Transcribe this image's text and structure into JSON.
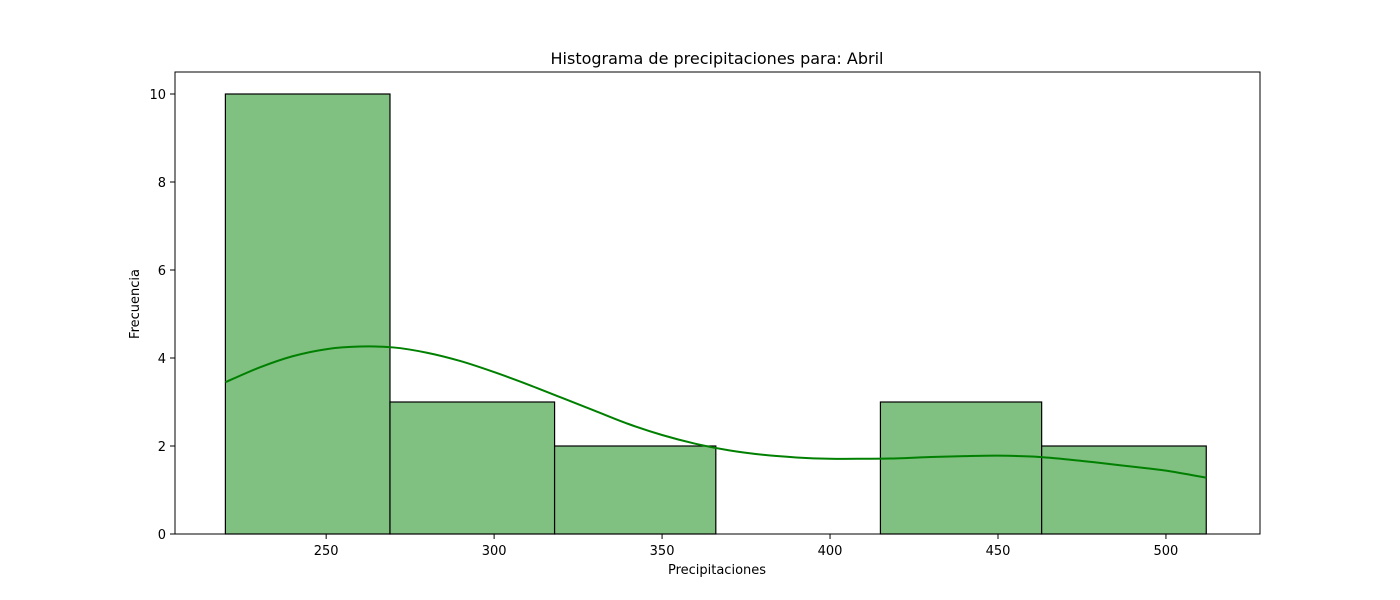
{
  "chart_data": {
    "type": "bar",
    "title": "Histograma de precipitaciones para: Abril",
    "xlabel": "Precipitaciones",
    "ylabel": "Frecuencia",
    "bins": [
      {
        "x0": 220,
        "x1": 269,
        "count": 10
      },
      {
        "x0": 269,
        "x1": 318,
        "count": 3
      },
      {
        "x0": 318,
        "x1": 366,
        "count": 2
      },
      {
        "x0": 366,
        "x1": 415,
        "count": 0
      },
      {
        "x0": 415,
        "x1": 463,
        "count": 3
      },
      {
        "x0": 463,
        "x1": 512,
        "count": 2
      }
    ],
    "xlim": [
      205,
      528
    ],
    "ylim": [
      0,
      10.5
    ],
    "xticks": [
      250,
      300,
      350,
      400,
      450,
      500
    ],
    "yticks": [
      0,
      2,
      4,
      6,
      8,
      10
    ],
    "kde": {
      "x": [
        220,
        230,
        240,
        250,
        260,
        270,
        280,
        290,
        300,
        310,
        320,
        330,
        340,
        350,
        360,
        370,
        380,
        390,
        400,
        410,
        420,
        430,
        440,
        450,
        460,
        470,
        480,
        490,
        500,
        512
      ],
      "y": [
        3.45,
        3.78,
        4.04,
        4.2,
        4.26,
        4.24,
        4.12,
        3.93,
        3.68,
        3.4,
        3.1,
        2.8,
        2.5,
        2.25,
        2.05,
        1.9,
        1.8,
        1.74,
        1.71,
        1.71,
        1.72,
        1.75,
        1.77,
        1.78,
        1.76,
        1.7,
        1.62,
        1.53,
        1.44,
        1.28
      ]
    },
    "colors": {
      "bar_fill": "#80c080",
      "bar_edge": "#000000",
      "kde_line": "#008000"
    },
    "grid": false,
    "legend": "none"
  }
}
